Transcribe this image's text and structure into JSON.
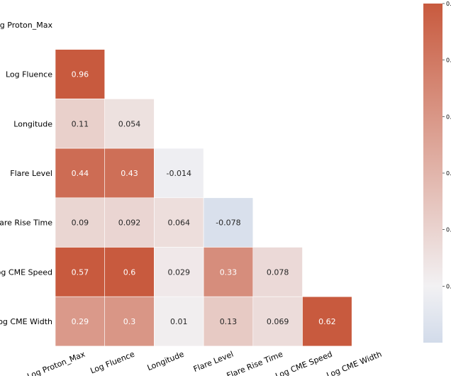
{
  "chart_data": {
    "type": "heatmap",
    "variables": [
      "Log Proton_Max",
      "Log Fluence",
      "Longitude",
      "Flare Level",
      "Flare Rise Time",
      "Log CME Speed",
      "Log CME Width"
    ],
    "y_labels": [
      "Log Proton_Max",
      "Log Fluence",
      "Longitude",
      "Flare Level",
      "Flare Rise Time",
      "Log CME Speed",
      "Log CME Width"
    ],
    "x_labels": [
      "Log Proton_Max",
      "Log Fluence",
      "Longitude",
      "Flare Level",
      "Flare Rise Time",
      "Log CME Speed",
      "Log CME Width"
    ],
    "mask": "upper-triangle-including-diagonal",
    "cells": [
      {
        "row": 1,
        "col": 0,
        "value": 0.96,
        "label": "0.96"
      },
      {
        "row": 2,
        "col": 0,
        "value": 0.11,
        "label": "0.11"
      },
      {
        "row": 2,
        "col": 1,
        "value": 0.054,
        "label": "0.054"
      },
      {
        "row": 3,
        "col": 0,
        "value": 0.44,
        "label": "0.44"
      },
      {
        "row": 3,
        "col": 1,
        "value": 0.43,
        "label": "0.43"
      },
      {
        "row": 3,
        "col": 2,
        "value": -0.014,
        "label": "-0.014"
      },
      {
        "row": 4,
        "col": 0,
        "value": 0.09,
        "label": "0.09"
      },
      {
        "row": 4,
        "col": 1,
        "value": 0.092,
        "label": "0.092"
      },
      {
        "row": 4,
        "col": 2,
        "value": 0.064,
        "label": "0.064"
      },
      {
        "row": 4,
        "col": 3,
        "value": -0.078,
        "label": "-0.078"
      },
      {
        "row": 5,
        "col": 0,
        "value": 0.57,
        "label": "0.57"
      },
      {
        "row": 5,
        "col": 1,
        "value": 0.6,
        "label": "0.6"
      },
      {
        "row": 5,
        "col": 2,
        "value": 0.029,
        "label": "0.029"
      },
      {
        "row": 5,
        "col": 3,
        "value": 0.33,
        "label": "0.33"
      },
      {
        "row": 5,
        "col": 4,
        "value": 0.078,
        "label": "0.078"
      },
      {
        "row": 6,
        "col": 0,
        "value": 0.29,
        "label": "0.29"
      },
      {
        "row": 6,
        "col": 1,
        "value": 0.3,
        "label": "0.3"
      },
      {
        "row": 6,
        "col": 2,
        "value": 0.01,
        "label": "0.01"
      },
      {
        "row": 6,
        "col": 3,
        "value": 0.13,
        "label": "0.13"
      },
      {
        "row": 6,
        "col": 4,
        "value": 0.069,
        "label": "0.069"
      },
      {
        "row": 6,
        "col": 5,
        "value": 0.62,
        "label": "0.62"
      }
    ],
    "colorbar": {
      "vmin": -0.1,
      "vmax": 0.5,
      "ticks": [
        "0.0",
        "0.1",
        "0.2",
        "0.3",
        "0.4",
        "0.5"
      ],
      "tick_values": [
        0.0,
        0.1,
        0.2,
        0.3,
        0.4,
        0.5
      ],
      "colormap": "diverging blue-white-red",
      "low_color": "#d2dbea",
      "mid_color": "#f2f1f3",
      "high_color": "#c85a3e",
      "position": "right"
    },
    "text_colors": {
      "dark_cell": "#ffffff",
      "light_cell": "#262626"
    },
    "grid": false
  }
}
